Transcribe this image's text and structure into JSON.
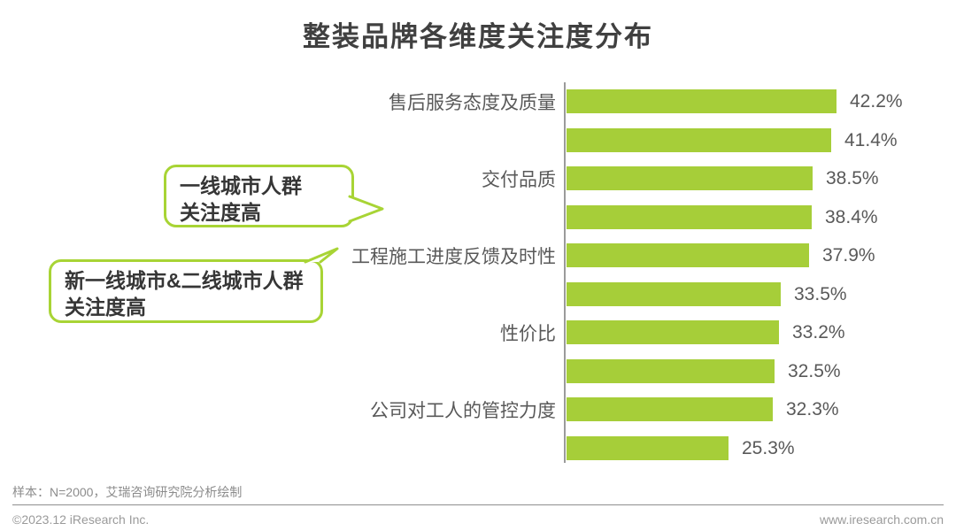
{
  "title": "整装品牌各维度关注度分布",
  "chart_data": {
    "type": "bar",
    "orientation": "horizontal",
    "value_unit": "%",
    "xlim": [
      0,
      45
    ],
    "grid": false,
    "legend": "none",
    "bar_color": "#a6ce39",
    "axis_color": "#9b9b9b",
    "bars": [
      {
        "label": "售后服务态度及质量",
        "value": 42.2,
        "value_label": "42.2%"
      },
      {
        "label": "",
        "value": 41.4,
        "value_label": "41.4%"
      },
      {
        "label": "交付品质",
        "value": 38.5,
        "value_label": "38.5%"
      },
      {
        "label": "",
        "value": 38.4,
        "value_label": "38.4%"
      },
      {
        "label": "工程施工进度反馈及时性",
        "value": 37.9,
        "value_label": "37.9%"
      },
      {
        "label": "",
        "value": 33.5,
        "value_label": "33.5%"
      },
      {
        "label": "性价比",
        "value": 33.2,
        "value_label": "33.2%"
      },
      {
        "label": "",
        "value": 32.5,
        "value_label": "32.5%"
      },
      {
        "label": "公司对工人的管控力度",
        "value": 32.3,
        "value_label": "32.3%"
      },
      {
        "label": "",
        "value": 25.3,
        "value_label": "25.3%"
      }
    ]
  },
  "annotations": [
    {
      "lines": [
        "一线城市人群",
        "关注度高"
      ],
      "border_color": "#a8d435"
    },
    {
      "lines": [
        "新一线城市&二线城市人群",
        "关注度高"
      ],
      "border_color": "#a8d435"
    }
  ],
  "footer": {
    "note": "样本：N=2000，艾瑞咨询研究院分析绘制",
    "copyright": "©2023.12 iResearch Inc.",
    "website": "www.iresearch.com.cn"
  }
}
